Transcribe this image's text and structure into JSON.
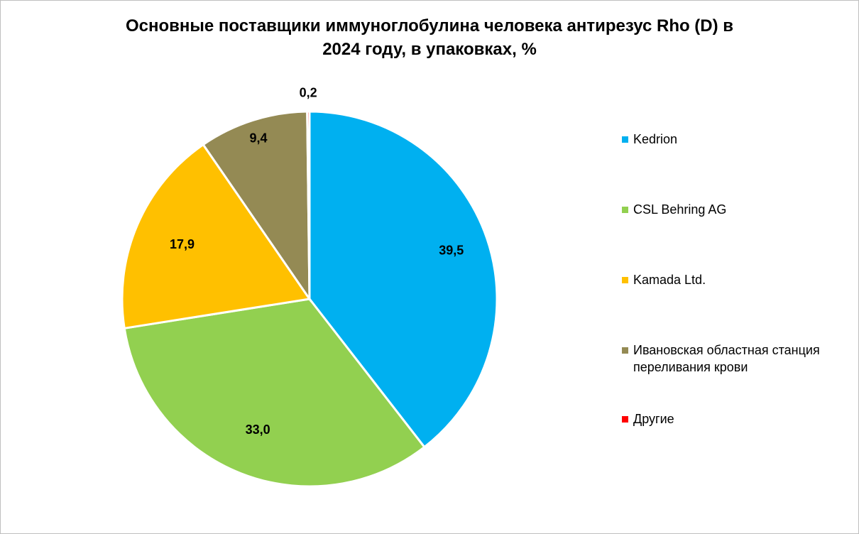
{
  "chart_data": {
    "type": "pie",
    "title": "Основные поставщики иммуноглобулина человека антирезус Rho (D) в 2024 году, в упаковках, %",
    "title_lines": [
      "Основные поставщики иммуноглобулина человека антирезус Rho (D) в",
      "2024 году, в упаковках, %"
    ],
    "legend_position": "right",
    "slices": [
      {
        "label": "Kedrion",
        "value": 39.5,
        "data_label": "39,5",
        "color": "#00B0F0"
      },
      {
        "label": "CSL Behring AG",
        "value": 33.0,
        "data_label": "33,0",
        "color": "#92D050"
      },
      {
        "label": "Kamada Ltd.",
        "value": 17.9,
        "data_label": "17,9",
        "color": "#FFC000"
      },
      {
        "label": "Ивановская областная станция переливания крови",
        "value": 9.4,
        "data_label": "9,4",
        "color": "#948A54"
      },
      {
        "label": "Другие",
        "value": 0.2,
        "data_label": "0,2",
        "color": "#FF0000"
      }
    ]
  }
}
